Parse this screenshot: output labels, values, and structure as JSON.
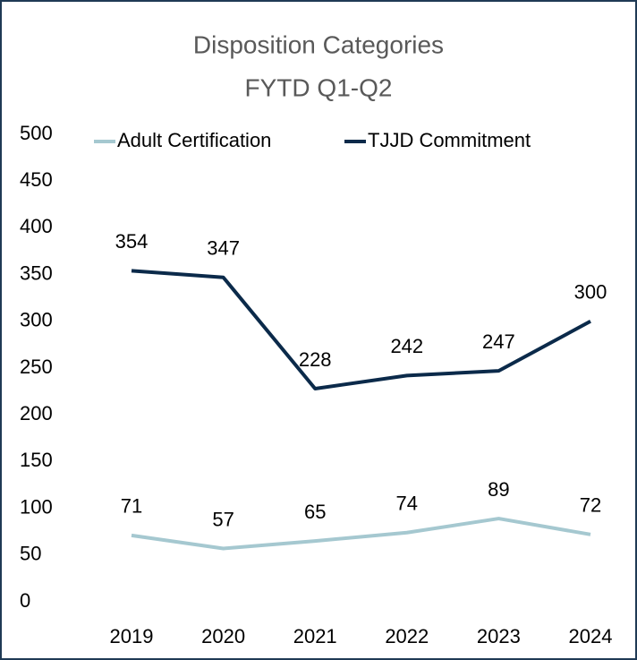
{
  "chart_data": {
    "type": "line",
    "title": "Disposition Categories",
    "subtitle": "FYTD Q1-Q2",
    "categories": [
      "2019",
      "2020",
      "2021",
      "2022",
      "2023",
      "2024"
    ],
    "series": [
      {
        "name": "Adult Certification",
        "color": "#a5c8d0",
        "values": [
          71,
          57,
          65,
          74,
          89,
          72
        ]
      },
      {
        "name": "TJJD Commitment",
        "color": "#0b2a4a",
        "values": [
          354,
          347,
          228,
          242,
          247,
          300
        ]
      }
    ],
    "ylim": [
      0,
      500
    ],
    "yticks": [
      0,
      50,
      100,
      150,
      200,
      250,
      300,
      350,
      400,
      450,
      500
    ],
    "grid": false,
    "legend": "top",
    "data_labels": true
  }
}
